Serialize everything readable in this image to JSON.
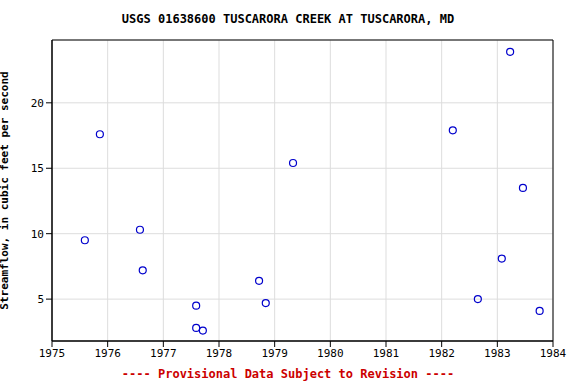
{
  "chart_data": {
    "type": "scatter",
    "title": "USGS 01638600 TUSCARORA CREEK AT TUSCARORA, MD",
    "subtitle": "---- Provisional Data Subject to Revision ----",
    "y_label": "Streamflow, in cubic feet per second",
    "x": [
      1975.59,
      1975.86,
      1976.58,
      1976.63,
      1977.59,
      1977.59,
      1977.71,
      1978.72,
      1978.84,
      1979.33,
      1982.2,
      1982.65,
      1983.08,
      1983.23,
      1983.46,
      1983.76
    ],
    "values": [
      9.5,
      17.6,
      10.3,
      7.2,
      4.5,
      2.8,
      2.6,
      6.4,
      4.7,
      15.4,
      17.9,
      5.0,
      8.1,
      23.9,
      13.5,
      4.1
    ],
    "color": "#0000cc",
    "marker": "open_circle",
    "xlim": [
      1975,
      1984
    ],
    "xticks": [
      1975,
      1976,
      1977,
      1978,
      1979,
      1980,
      1981,
      1982,
      1983,
      1984
    ],
    "ylim": [
      1.8,
      24.8
    ],
    "yticks": [
      5,
      10,
      15,
      20
    ],
    "grid": true
  }
}
